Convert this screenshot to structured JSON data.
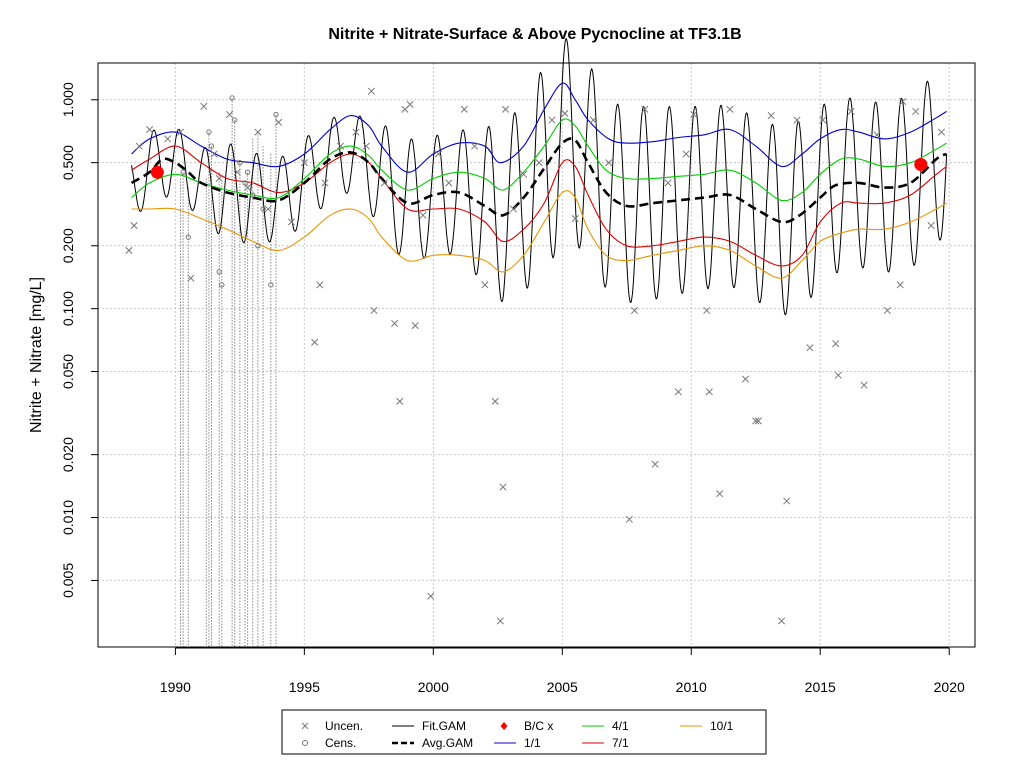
{
  "chart_data": {
    "type": "line",
    "title": "Nitrite + Nitrate-Surface & Above Pycnocline at TF3.1B",
    "xlabel": "",
    "ylabel": "Nitrite + Nitrate [mg/L]",
    "y_scale": "log",
    "xlim": [
      1987.0,
      2021.0
    ],
    "ylim": [
      0.0024,
      1.5
    ],
    "x_ticks": [
      1990,
      1995,
      2000,
      2005,
      2010,
      2015,
      2020
    ],
    "x_tick_labels": [
      "1990",
      "1995",
      "2000",
      "2005",
      "2010",
      "2015",
      "2020"
    ],
    "y_ticks": [
      0.005,
      0.01,
      0.02,
      0.05,
      0.1,
      0.2,
      0.5,
      1.0
    ],
    "y_tick_labels": [
      "0.005",
      "0.010",
      "0.020",
      "0.050",
      "0.100",
      "0.200",
      "0.500",
      "1.000"
    ],
    "grid": true,
    "fit_gam": {
      "name": "Fit.GAM",
      "color": "#000000",
      "period_years": 1.0,
      "peak_phase": 0.15,
      "years": [
        1988.3,
        1989,
        1990,
        1991,
        1992,
        1993,
        1994,
        1995,
        1996,
        1997,
        1998,
        1999,
        2000,
        2001,
        2002,
        2003,
        2004,
        2005,
        2006,
        2007,
        2008,
        2009,
        2010,
        2011,
        2012,
        2013,
        2014,
        2015,
        2016,
        2017,
        2018,
        2019,
        2019.9
      ],
      "seasonal_amplitude": [
        0.33,
        0.42,
        0.4,
        0.38,
        0.55,
        0.5,
        0.45,
        0.48,
        0.45,
        0.43,
        0.6,
        0.7,
        0.65,
        0.68,
        0.88,
        1.0,
        1.1,
        1.15,
        1.1,
        1.05,
        1.08,
        1.05,
        1.02,
        1.0,
        1.0,
        1.02,
        1.05,
        1.0,
        0.95,
        0.92,
        0.95,
        0.95,
        0.9
      ]
    },
    "series": [
      {
        "name": "Avg.GAM",
        "color": "#000000",
        "style": "dashed",
        "x": [
          1988.3,
          1989,
          1989.5,
          1990,
          1990.5,
          1991,
          1992,
          1993,
          1994,
          1995,
          1996,
          1996.8,
          1997.5,
          1998,
          1999,
          2000,
          2001,
          2002,
          2002.7,
          2003.5,
          2004.3,
          2005,
          2005.5,
          2006,
          2006.7,
          2007.5,
          2008.5,
          2009.5,
          2010.5,
          2011.5,
          2012.5,
          2013.5,
          2014.2,
          2015,
          2015.6,
          2016.5,
          2017.5,
          2018.5,
          2019.5,
          2019.9
        ],
        "values": [
          0.4,
          0.45,
          0.52,
          0.5,
          0.45,
          0.4,
          0.36,
          0.34,
          0.33,
          0.4,
          0.52,
          0.56,
          0.5,
          0.42,
          0.32,
          0.35,
          0.36,
          0.31,
          0.28,
          0.34,
          0.47,
          0.62,
          0.64,
          0.5,
          0.36,
          0.31,
          0.32,
          0.33,
          0.34,
          0.35,
          0.3,
          0.26,
          0.28,
          0.34,
          0.39,
          0.4,
          0.38,
          0.4,
          0.52,
          0.55
        ]
      },
      {
        "name": "1/1",
        "color": "#0000cc",
        "style": "solid",
        "x": [
          1988.3,
          1989,
          1990,
          1991,
          1992,
          1993,
          1994,
          1995,
          1996,
          1996.8,
          1997.5,
          1998,
          1999,
          2000,
          2001,
          2002,
          2002.6,
          2003.5,
          2004.3,
          2005,
          2005.5,
          2006,
          2006.8,
          2007.5,
          2008.5,
          2009.5,
          2010.5,
          2011.5,
          2012.5,
          2013.5,
          2014.3,
          2015,
          2015.8,
          2016.5,
          2017.5,
          2018.5,
          2019.5,
          2019.9
        ],
        "values": [
          0.55,
          0.65,
          0.7,
          0.6,
          0.52,
          0.5,
          0.48,
          0.55,
          0.72,
          0.84,
          0.75,
          0.6,
          0.45,
          0.55,
          0.62,
          0.6,
          0.5,
          0.6,
          0.9,
          1.2,
          1.0,
          0.8,
          0.65,
          0.62,
          0.63,
          0.66,
          0.68,
          0.72,
          0.6,
          0.48,
          0.55,
          0.65,
          0.72,
          0.7,
          0.65,
          0.7,
          0.82,
          0.88
        ]
      },
      {
        "name": "4/1",
        "color": "#00cc00",
        "style": "solid",
        "x": [
          1988.3,
          1989,
          1990,
          1991,
          1992,
          1993,
          1994,
          1995,
          1996,
          1996.8,
          1997.5,
          1998,
          1999,
          2000,
          2001,
          2002,
          2002.7,
          2003.5,
          2004.3,
          2005,
          2005.5,
          2006,
          2006.7,
          2007.5,
          2008.5,
          2009.5,
          2010.5,
          2011.5,
          2012.5,
          2013.5,
          2014.3,
          2015,
          2015.8,
          2016.5,
          2017.5,
          2018.5,
          2019.5,
          2019.9
        ],
        "values": [
          0.34,
          0.4,
          0.44,
          0.4,
          0.37,
          0.35,
          0.34,
          0.42,
          0.55,
          0.6,
          0.54,
          0.46,
          0.37,
          0.42,
          0.45,
          0.42,
          0.37,
          0.45,
          0.6,
          0.8,
          0.75,
          0.6,
          0.46,
          0.42,
          0.42,
          0.43,
          0.44,
          0.46,
          0.4,
          0.33,
          0.36,
          0.44,
          0.52,
          0.52,
          0.48,
          0.5,
          0.58,
          0.62
        ]
      },
      {
        "name": "7/1",
        "color": "#dd0000",
        "style": "solid",
        "x": [
          1988.3,
          1989,
          1990,
          1991,
          1992,
          1993,
          1994,
          1995,
          1996,
          1996.8,
          1997.5,
          1998,
          1999,
          2000,
          2001,
          2002,
          2002.7,
          2003.5,
          2004.3,
          2005,
          2005.5,
          2006,
          2006.7,
          2007.5,
          2008.5,
          2009.5,
          2010.5,
          2011.5,
          2012.5,
          2013.5,
          2014.3,
          2015,
          2015.8,
          2016.5,
          2017.5,
          2018.5,
          2019.5,
          2019.9
        ],
        "values": [
          0.46,
          0.52,
          0.6,
          0.5,
          0.42,
          0.4,
          0.36,
          0.4,
          0.5,
          0.55,
          0.5,
          0.42,
          0.3,
          0.3,
          0.3,
          0.26,
          0.21,
          0.24,
          0.32,
          0.5,
          0.48,
          0.35,
          0.24,
          0.2,
          0.2,
          0.21,
          0.22,
          0.21,
          0.18,
          0.16,
          0.18,
          0.26,
          0.32,
          0.32,
          0.32,
          0.35,
          0.44,
          0.48
        ]
      },
      {
        "name": "10/1",
        "color": "#e69500",
        "style": "solid",
        "x": [
          1988.3,
          1989,
          1990,
          1991,
          1992,
          1993,
          1994,
          1995,
          1996,
          1996.8,
          1997.5,
          1998,
          1999,
          2000,
          2001,
          2002,
          2002.7,
          2003.5,
          2004.3,
          2005,
          2005.5,
          2006,
          2006.7,
          2007.5,
          2008.5,
          2009.5,
          2010.5,
          2011.5,
          2012.5,
          2013.5,
          2014.3,
          2015,
          2015.8,
          2016.5,
          2017.5,
          2018.5,
          2019.5,
          2019.9
        ],
        "values": [
          0.3,
          0.3,
          0.3,
          0.27,
          0.24,
          0.21,
          0.19,
          0.22,
          0.28,
          0.3,
          0.27,
          0.22,
          0.17,
          0.18,
          0.18,
          0.17,
          0.15,
          0.18,
          0.26,
          0.36,
          0.34,
          0.24,
          0.18,
          0.17,
          0.18,
          0.19,
          0.2,
          0.19,
          0.16,
          0.14,
          0.17,
          0.21,
          0.23,
          0.24,
          0.24,
          0.26,
          0.3,
          0.32
        ]
      }
    ],
    "bc_points": {
      "name": "B/C x",
      "color": "#ff0000",
      "x": [
        1989.3,
        2018.9
      ],
      "values": [
        0.45,
        0.49
      ]
    },
    "uncensored_points": {
      "name": "Uncen.",
      "color": "#777777",
      "x": [
        1988.2,
        1988.4,
        1988.6,
        1989.0,
        1989.7,
        1990.2,
        1990.6,
        1991.1,
        1991.5,
        1991.7,
        1992.1,
        1992.4,
        1992.8,
        1993.2,
        1993.6,
        1994.0,
        1994.5,
        1995.0,
        1995.4,
        1995.6,
        1995.8,
        1996.4,
        1997.0,
        1997.4,
        1997.6,
        1997.7,
        1998.1,
        1998.5,
        1998.7,
        1998.9,
        1999.1,
        1999.3,
        1999.6,
        1999.9,
        2000.2,
        2000.6,
        2001.2,
        2001.6,
        2002.0,
        2002.4,
        2002.6,
        2002.7,
        2002.8,
        2003.1,
        2003.5,
        2004.1,
        2004.6,
        2005.1,
        2005.5,
        2006.2,
        2006.8,
        2007.6,
        2007.8,
        2008.2,
        2008.6,
        2009.1,
        2009.5,
        2009.8,
        2010.1,
        2010.6,
        2010.7,
        2011.1,
        2011.5,
        2012.1,
        2012.5,
        2012.6,
        2013.1,
        2013.5,
        2013.7,
        2014.1,
        2014.6,
        2015.1,
        2015.6,
        2015.7,
        2016.2,
        2016.7,
        2017.2,
        2017.6,
        2018.1,
        2018.2,
        2018.7,
        2019.3,
        2019.7
      ],
      "values": [
        0.19,
        0.25,
        0.6,
        0.72,
        0.65,
        0.7,
        0.14,
        0.93,
        0.55,
        0.42,
        0.85,
        0.45,
        0.38,
        0.7,
        0.3,
        0.78,
        0.26,
        0.5,
        0.069,
        0.13,
        0.4,
        0.6,
        0.7,
        0.6,
        1.1,
        0.098,
        0.4,
        0.085,
        0.036,
        0.9,
        0.95,
        0.083,
        0.28,
        0.0042,
        0.55,
        0.4,
        0.9,
        0.6,
        0.13,
        0.036,
        0.0032,
        0.014,
        0.9,
        0.3,
        0.44,
        0.5,
        0.8,
        0.86,
        0.27,
        0.8,
        0.5,
        0.0098,
        0.098,
        0.9,
        0.018,
        0.4,
        0.04,
        0.55,
        0.85,
        0.098,
        0.04,
        0.013,
        0.9,
        0.046,
        0.029,
        0.029,
        0.84,
        0.0032,
        0.012,
        0.8,
        0.065,
        0.8,
        0.068,
        0.048,
        0.88,
        0.043,
        0.68,
        0.098,
        0.13,
        0.98,
        0.88,
        0.25,
        0.7
      ]
    },
    "censored_points": {
      "name": "Cens.",
      "color": "#777777",
      "x": [
        1990.3,
        1990.5,
        1991.3,
        1991.4,
        1991.7,
        1991.8,
        1992.2,
        1992.3,
        1992.5,
        1992.7,
        1992.8,
        1993.0,
        1993.2,
        1993.4,
        1993.7,
        1993.9
      ],
      "values": [
        0.45,
        0.22,
        0.7,
        0.6,
        0.15,
        0.13,
        1.02,
        0.8,
        0.5,
        0.4,
        0.45,
        0.35,
        0.2,
        0.3,
        0.13,
        0.85
      ]
    },
    "censored_ranges": {
      "x": [
        1990.2,
        1990.3,
        1990.5,
        1991.2,
        1991.3,
        1991.4,
        1991.7,
        1991.8,
        1992.2,
        1992.3,
        1992.5,
        1992.7,
        1992.8,
        1993.0,
        1993.2,
        1993.4,
        1993.7,
        1993.9
      ],
      "upper": [
        0.42,
        0.45,
        0.38,
        0.42,
        0.7,
        0.6,
        0.45,
        0.4,
        1.02,
        0.8,
        0.5,
        0.4,
        0.45,
        0.65,
        0.7,
        0.6,
        0.55,
        0.85
      ],
      "lower": [
        0.0024,
        0.0024,
        0.0024,
        0.0024,
        0.0024,
        0.0024,
        0.0024,
        0.0024,
        0.0024,
        0.0024,
        0.0024,
        0.0024,
        0.0024,
        0.0024,
        0.0024,
        0.0024,
        0.0024,
        0.0024
      ]
    },
    "legend": {
      "placement": "bottom-center",
      "entries": [
        {
          "label": "Uncen.",
          "symbol": "x",
          "color": "#777777"
        },
        {
          "label": "Cens.",
          "symbol": "o",
          "color": "#777777"
        },
        {
          "label": "Fit.GAM",
          "symbol": "line",
          "color": "#000000"
        },
        {
          "label": "Avg.GAM",
          "symbol": "dashed",
          "color": "#000000"
        },
        {
          "label": "B/C x",
          "symbol": "diamond",
          "color": "#ff0000"
        },
        {
          "label": "1/1",
          "symbol": "line",
          "color": "#0000cc"
        },
        {
          "label": "4/1",
          "symbol": "line",
          "color": "#00cc00"
        },
        {
          "label": "7/1",
          "symbol": "line",
          "color": "#dd0000"
        },
        {
          "label": "10/1",
          "symbol": "line",
          "color": "#e69500"
        }
      ]
    }
  }
}
